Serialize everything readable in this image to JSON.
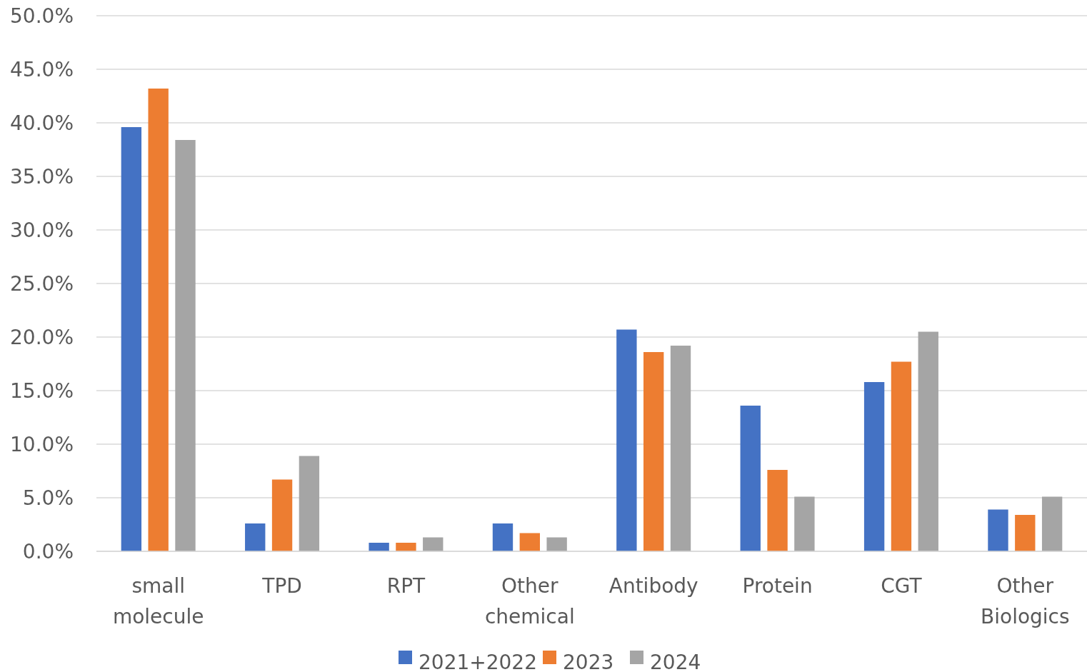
{
  "chart_data": {
    "type": "bar",
    "categories": [
      "small molecule",
      "TPD",
      "RPT",
      "Other chemical",
      "Antibody",
      "Protein",
      "CGT",
      "Other Biologics"
    ],
    "series": [
      {
        "name": "2021+2022",
        "color": "#4472c4",
        "values": [
          39.6,
          2.6,
          0.8,
          2.6,
          20.7,
          13.6,
          15.8,
          3.9
        ]
      },
      {
        "name": "2023",
        "color": "#ed7d31",
        "values": [
          43.2,
          6.7,
          0.8,
          1.7,
          18.6,
          7.6,
          17.7,
          3.4
        ]
      },
      {
        "name": "2024",
        "color": "#a5a5a5",
        "values": [
          38.4,
          8.9,
          1.3,
          1.3,
          19.2,
          5.1,
          20.5,
          5.1
        ]
      }
    ],
    "ylim": [
      0,
      50
    ],
    "yticks": [
      {
        "value": 0,
        "label": "0.0%"
      },
      {
        "value": 5,
        "label": "5.0%"
      },
      {
        "value": 10,
        "label": "10.0%"
      },
      {
        "value": 15,
        "label": "15.0%"
      },
      {
        "value": 20,
        "label": "20.0%"
      },
      {
        "value": 25,
        "label": "25.0%"
      },
      {
        "value": 30,
        "label": "30.0%"
      },
      {
        "value": 35,
        "label": "35.0%"
      },
      {
        "value": 40,
        "label": "40.0%"
      },
      {
        "value": 45,
        "label": "45.0%"
      },
      {
        "value": 50,
        "label": "50.0%"
      }
    ],
    "grid": "y",
    "legend": "bottom"
  }
}
